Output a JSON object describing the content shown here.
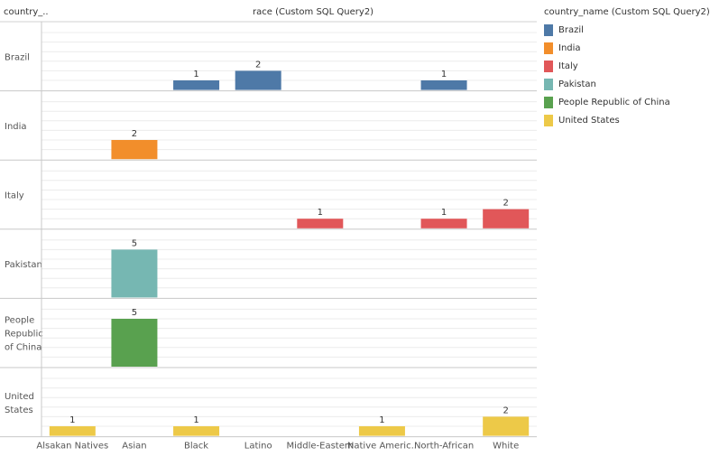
{
  "header": {
    "row_field": "country_..",
    "column_field": "race (Custom SQL Query2)"
  },
  "legend": {
    "title": "country_name (Custom SQL Query2)",
    "items": [
      {
        "label": "Brazil",
        "color": "#4e79a7"
      },
      {
        "label": "India",
        "color": "#f28e2b"
      },
      {
        "label": "Italy",
        "color": "#e15759"
      },
      {
        "label": "Pakistan",
        "color": "#76b7b2"
      },
      {
        "label": "People Republic of China",
        "color": "#59a14f"
      },
      {
        "label": "United States",
        "color": "#edc948"
      }
    ]
  },
  "chart_data": {
    "type": "bar",
    "layout": "small-multiples",
    "categories": [
      "Alsakan Natives",
      "Asian",
      "Black",
      "Latino",
      "Middle-Eastern",
      "Native Americ..",
      "North-African",
      "White"
    ],
    "rows": [
      {
        "label": "Brazil",
        "display_label": [
          "Brazil"
        ],
        "color": "#4e79a7",
        "values": [
          null,
          null,
          1,
          2,
          null,
          null,
          1,
          null
        ]
      },
      {
        "label": "India",
        "display_label": [
          "India"
        ],
        "color": "#f28e2b",
        "values": [
          null,
          2,
          null,
          null,
          null,
          null,
          null,
          null
        ]
      },
      {
        "label": "Italy",
        "display_label": [
          "Italy"
        ],
        "color": "#e15759",
        "values": [
          null,
          null,
          null,
          null,
          1,
          null,
          1,
          2
        ]
      },
      {
        "label": "Pakistan",
        "display_label": [
          "Pakistan"
        ],
        "color": "#76b7b2",
        "values": [
          null,
          5,
          null,
          null,
          null,
          null,
          null,
          null
        ]
      },
      {
        "label": "People Republic of China",
        "display_label": [
          "People",
          "Republic",
          "of China"
        ],
        "color": "#59a14f",
        "values": [
          null,
          5,
          null,
          null,
          null,
          null,
          null,
          null
        ]
      },
      {
        "label": "United States",
        "display_label": [
          "United",
          "States"
        ],
        "color": "#edc948",
        "values": [
          1,
          null,
          1,
          null,
          null,
          1,
          null,
          2
        ]
      }
    ],
    "ylim": [
      0,
      6
    ],
    "grid": true,
    "legend_position": "right"
  }
}
